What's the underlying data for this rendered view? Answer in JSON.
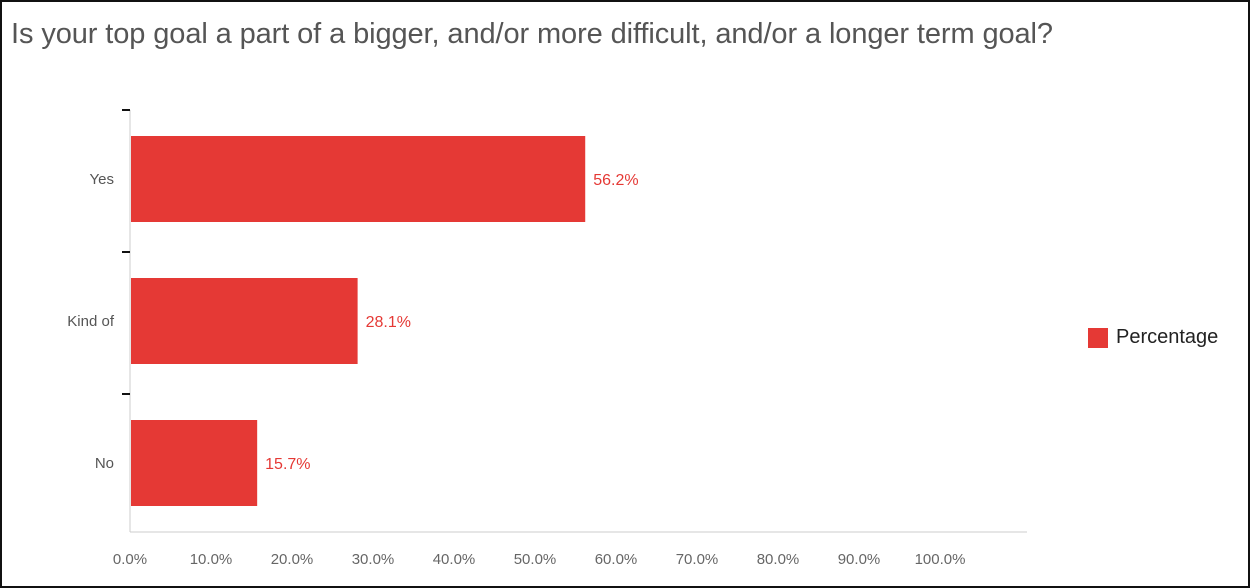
{
  "chart_data": {
    "type": "bar",
    "orientation": "horizontal",
    "title": "Is your top goal a part of a bigger, and/or more difficult, and/or a longer term goal?",
    "categories": [
      "Yes",
      "Kind of",
      "No"
    ],
    "series": [
      {
        "name": "Percentage",
        "values": [
          56.2,
          28.1,
          15.7
        ],
        "color": "#e53935"
      }
    ],
    "value_labels": [
      "56.2%",
      "28.1%",
      "15.7%"
    ],
    "x_ticks": [
      "0.0%",
      "10.0%",
      "20.0%",
      "30.0%",
      "40.0%",
      "50.0%",
      "60.0%",
      "70.0%",
      "80.0%",
      "90.0%",
      "100.0%"
    ],
    "xlim": [
      0,
      100
    ],
    "xlabel": "",
    "ylabel": "",
    "legend": {
      "position": "right",
      "entries": [
        "Percentage"
      ]
    },
    "grid": false,
    "colors": {
      "bar": "#e53935",
      "value_label": "#e53935",
      "axis": "#cccccc",
      "tick_text": "#666666",
      "category_text": "#555555"
    }
  }
}
